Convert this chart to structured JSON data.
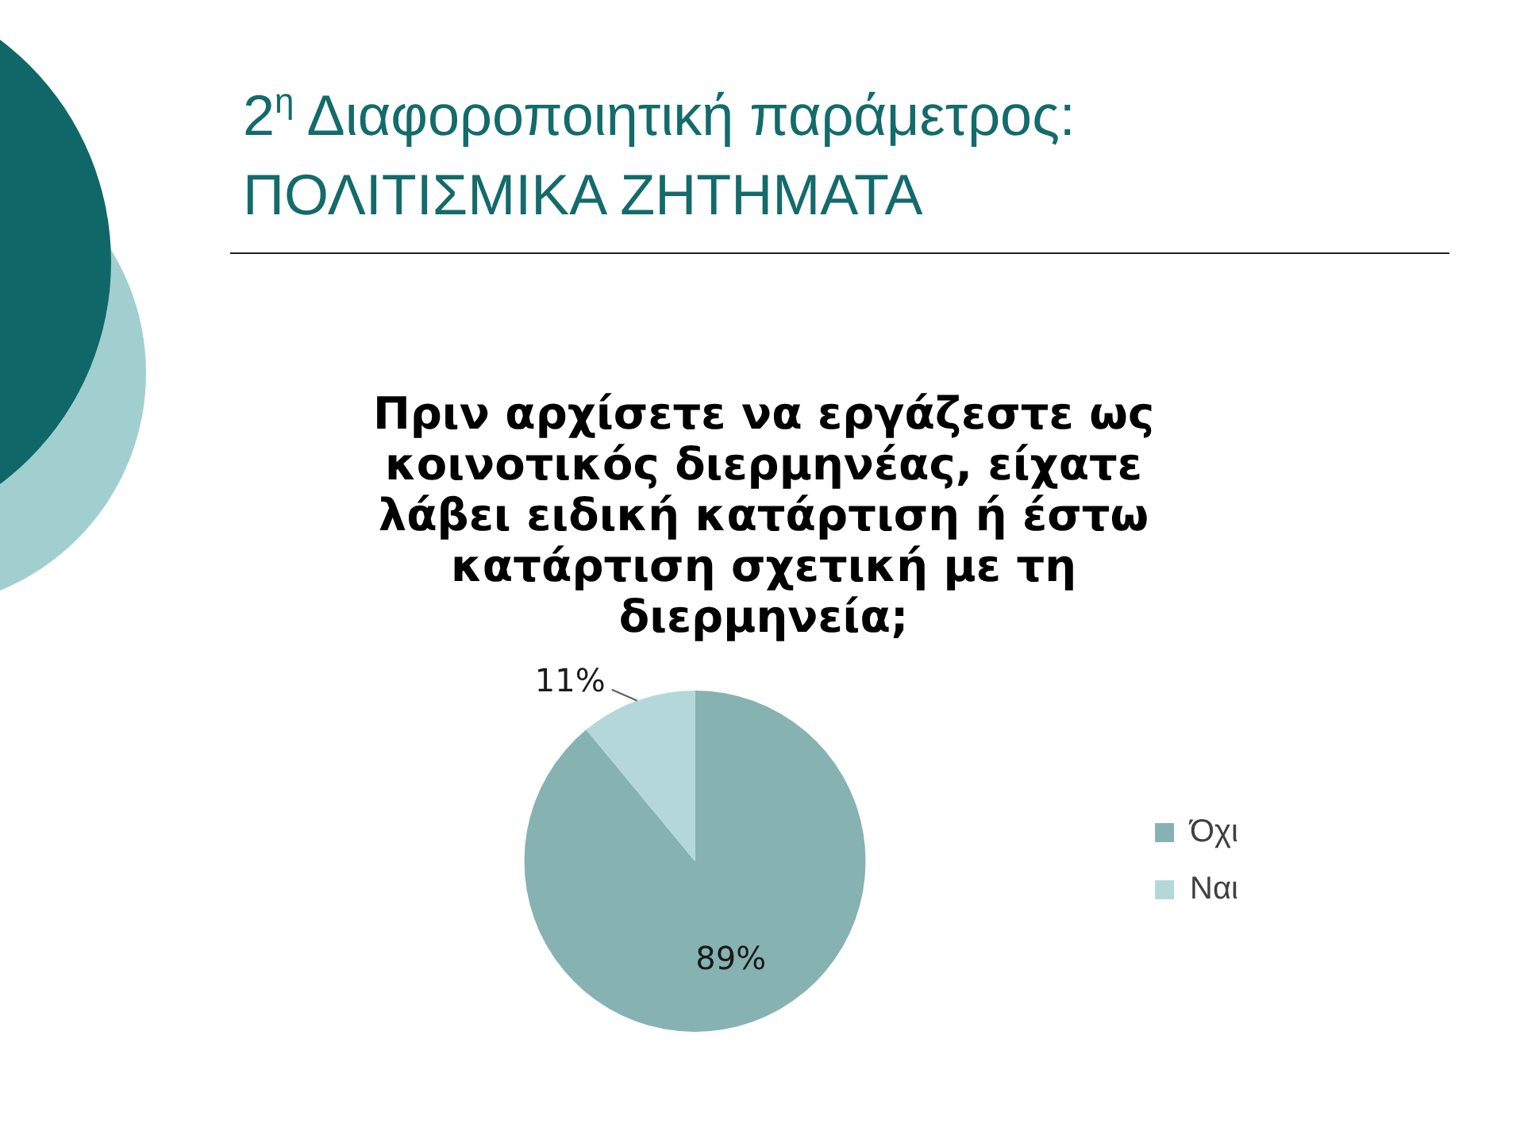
{
  "chart_data": {
    "type": "pie",
    "title": "2$^{η}$ Διαφοροποιητική παράμετρος: ΠΟΛΙΤΙΣΜΙΚΑ ΖΗΤΗΜΑΤΑ",
    "subtitle": "Πριν αρχίσετε να εργάζεστε ως κοινοτικός διερμηνέας, είχατε λάβει ειδική κατάρτιση ή έστω κατάρτιση σχετική με τη διερμηνεία;",
    "categories": [
      "Όχι",
      "Ναι"
    ],
    "values": [
      89,
      11
    ],
    "colors": [
      "#87b2b2",
      "#b4d8da"
    ],
    "value_labels": [
      "89%",
      "11%"
    ],
    "legend": "right"
  }
}
